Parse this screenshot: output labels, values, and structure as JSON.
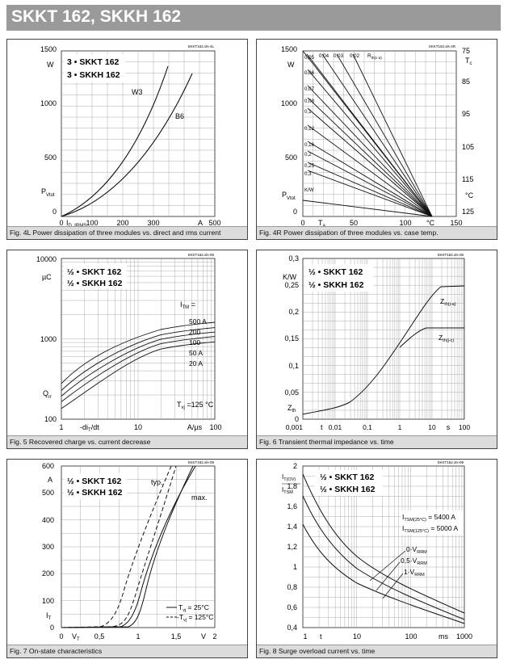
{
  "page_title": "SKKT 162, SKKH 162",
  "figures": [
    {
      "caption": "Fig. 4L Power dissipation of three modules vs. direct and rms current",
      "file_tag": "SKKT162.xls-4L",
      "legend": [
        "3 • SKKT 162",
        "3 • SKKH 162"
      ],
      "y_unit": "W",
      "y_symbol": "P",
      "y_symbol_sub": "Vtot",
      "x_unit": "A",
      "x_symbol": "I",
      "x_symbol_sub": "D, I",
      "x_symbol_sub2": "RMS",
      "y_ticks": [
        "0",
        "500",
        "1000",
        "1500"
      ],
      "x_ticks": [
        "0",
        "100",
        "200",
        "300",
        "400",
        "500"
      ],
      "curve_labels": [
        "W3",
        "B6"
      ]
    },
    {
      "caption": "Fig. 4R Power dissipation of three modules vs. case temp.",
      "file_tag": "SKKT162.xls-4R",
      "y_unit": "W",
      "y_symbol": "P",
      "y_symbol_sub": "Vtot",
      "x_symbol": "T",
      "x_symbol_sub": "a",
      "x_unit": "°C",
      "y_ticks": [
        "0",
        "500",
        "1000",
        "1500"
      ],
      "x_ticks": [
        "0",
        "50",
        "100",
        "150"
      ],
      "right_ticks": [
        "75",
        "85",
        "95",
        "105",
        "115",
        "125"
      ],
      "right_unit_top": "T",
      "right_unit_top_sub": "c",
      "right_unit_bottom": "°C",
      "rth_label": "R",
      "rth_label_sub": "th(c-a)",
      "kw_label": "K/W",
      "rth_top": [
        "0,05",
        "0,04",
        "0,03",
        "0,02"
      ],
      "rth_left": [
        "0,06",
        "0,07",
        "0,08",
        "0,1",
        "0,12",
        "0,16",
        "0,2",
        "0,25",
        "0,3"
      ]
    },
    {
      "caption": "Fig. 5 Recovered charge vs. current decrease",
      "file_tag": "SKKT162.xls-05",
      "legend": [
        "½ • SKKT 162",
        "½ • SKKH 162"
      ],
      "y_unit": "µC",
      "y_symbol": "Q",
      "y_symbol_sub": "rr",
      "y_ticks": [
        "100",
        "1000",
        "10000"
      ],
      "x_ticks": [
        "1",
        "10",
        "100"
      ],
      "x_label": "-di",
      "x_label_sub": "T",
      "x_label_tail": "/dt",
      "x_unit": "A/µs",
      "itm_label": "I",
      "itm_label_sub": "TM",
      "itm_label_tail": " =",
      "curve_labels": [
        "500 A",
        "200",
        "100",
        "50 A",
        "20 A"
      ],
      "tvj_note": "T",
      "tvj_note_sub": "vj",
      "tvj_note_tail": " =125 °C"
    },
    {
      "caption": "Fig. 6 Transient thermal impedance vs. time",
      "file_tag": "SKKT162.xls-06",
      "legend": [
        "½ • SKKT 162",
        "½ • SKKH 162"
      ],
      "y_unit": "K/W",
      "y_symbol": "Z",
      "y_symbol_sub": "th",
      "y_ticks": [
        "0",
        "0,05",
        "0,1",
        "0,15",
        "0,2",
        "0,25",
        "0,3"
      ],
      "x_ticks": [
        "0,001",
        "0,01",
        "0,1",
        "1",
        "10",
        "100"
      ],
      "x_symbol": "t",
      "x_unit": "s",
      "curve_labels": [
        "Z",
        "Z"
      ],
      "curve_label_subs": [
        "th(j-a)",
        "th(j-c)"
      ]
    },
    {
      "caption": "Fig. 7 On-state characteristics",
      "file_tag": "SKKT162.xls-08",
      "legend": [
        "½ • SKKT 162",
        "½ • SKKH 162"
      ],
      "y_unit": "A",
      "y_symbol": "I",
      "y_symbol_sub": "T",
      "y_ticks": [
        "0",
        "100",
        "200",
        "300",
        "400",
        "500",
        "600"
      ],
      "x_ticks": [
        "0",
        "0,5",
        "1",
        "1,5",
        "2"
      ],
      "x_symbol": "V",
      "x_symbol_sub": "T",
      "x_unit": "V",
      "curve_labels": [
        "typ.",
        "max."
      ],
      "line_legend": [
        "T",
        "-T"
      ],
      "line_legend_sub": "vj",
      "line_legend_tail": [
        " = 25°C",
        " = 125°C"
      ]
    },
    {
      "caption": "Fig. 8 Surge overload current vs. time",
      "file_tag": "SKKT162.xls-09",
      "legend": [
        "½ • SKKT 162",
        "½ • SKKH 162"
      ],
      "y_symbol_top": "I",
      "y_symbol_top_sub": "T(OV)",
      "y_symbol_bottom": "I",
      "y_symbol_bottom_sub": "TSM",
      "y_ticks": [
        "0,4",
        "0,6",
        "0,8",
        "1",
        "1,2",
        "1,4",
        "1,6",
        "1,8",
        "2"
      ],
      "x_ticks": [
        "1",
        "10",
        "100",
        "1000"
      ],
      "x_symbol": "t",
      "x_unit": "ms",
      "itsm_lines": [
        {
          "sym": "I",
          "sub": "TSM(25°C)",
          "tail": " = 5400 A"
        },
        {
          "sym": "I",
          "sub": "TSM(125°C)",
          "tail": " = 5000 A"
        }
      ],
      "curve_labels": [
        {
          "sym": "0·V",
          "sub": "RRM"
        },
        {
          "sym": "0,5·V",
          "sub": "RRM"
        },
        {
          "sym": "1·V",
          "sub": "RRM"
        }
      ]
    }
  ]
}
